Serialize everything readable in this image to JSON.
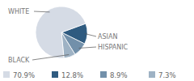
{
  "chart_data": {
    "type": "pie",
    "categories": [
      "WHITE",
      "ASIAN",
      "HISPANIC",
      "BLACK"
    ],
    "values": [
      70.9,
      12.8,
      8.9,
      7.3
    ],
    "value_labels": [
      "70.9%",
      "12.8%",
      "8.9%",
      "7.3%"
    ],
    "colors": [
      "#d5dbe5",
      "#2f5b80",
      "#7290aa",
      "#9eb2c4"
    ]
  }
}
